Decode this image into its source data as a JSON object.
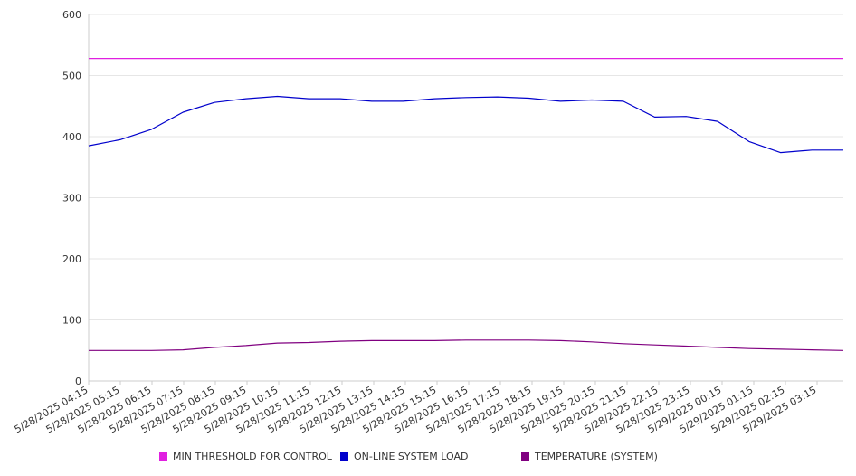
{
  "chart_data": {
    "type": "line",
    "title": "",
    "xlabel": "",
    "ylabel": "",
    "ylim": [
      0,
      600
    ],
    "yticks": [
      0,
      100,
      200,
      300,
      400,
      500,
      600
    ],
    "x_tick_labels": [
      "5/28/2025 04:15",
      "5/28/2025 05:15",
      "5/28/2025 06:15",
      "5/28/2025 07:15",
      "5/28/2025 08:15",
      "5/28/2025 09:15",
      "5/28/2025 10:15",
      "5/28/2025 11:15",
      "5/28/2025 12:15",
      "5/28/2025 13:15",
      "5/28/2025 14:15",
      "5/28/2025 15:15",
      "5/28/2025 16:15",
      "5/28/2025 17:15",
      "5/28/2025 18:15",
      "5/28/2025 19:15",
      "5/28/2025 20:15",
      "5/28/2025 21:15",
      "5/28/2025 22:15",
      "5/28/2025 23:15",
      "5/29/2025 00:15",
      "5/29/2025 01:15",
      "5/29/2025 02:15",
      "5/29/2025 03:15"
    ],
    "grid": true,
    "legend_position": "bottom",
    "series": [
      {
        "name": "MIN THRESHOLD FOR CONTROL",
        "color": "#e020e0",
        "values": [
          528,
          528,
          528,
          528,
          528,
          528,
          528,
          528,
          528,
          528,
          528,
          528,
          528,
          528,
          528,
          528,
          528,
          528,
          528,
          528,
          528,
          528,
          528,
          528,
          528
        ]
      },
      {
        "name": "ON-LINE SYSTEM LOAD",
        "color": "#0000cc",
        "values": [
          385,
          395,
          412,
          440,
          456,
          462,
          466,
          462,
          462,
          458,
          458,
          462,
          464,
          465,
          463,
          458,
          460,
          458,
          432,
          433,
          425,
          392,
          374,
          378,
          378
        ]
      },
      {
        "name": "TEMPERATURE (SYSTEM)",
        "color": "#800080",
        "values": [
          50,
          50,
          50,
          51,
          55,
          58,
          62,
          63,
          65,
          66,
          66,
          66,
          67,
          67,
          67,
          66,
          64,
          61,
          59,
          57,
          55,
          53,
          52,
          51,
          50
        ]
      }
    ]
  }
}
